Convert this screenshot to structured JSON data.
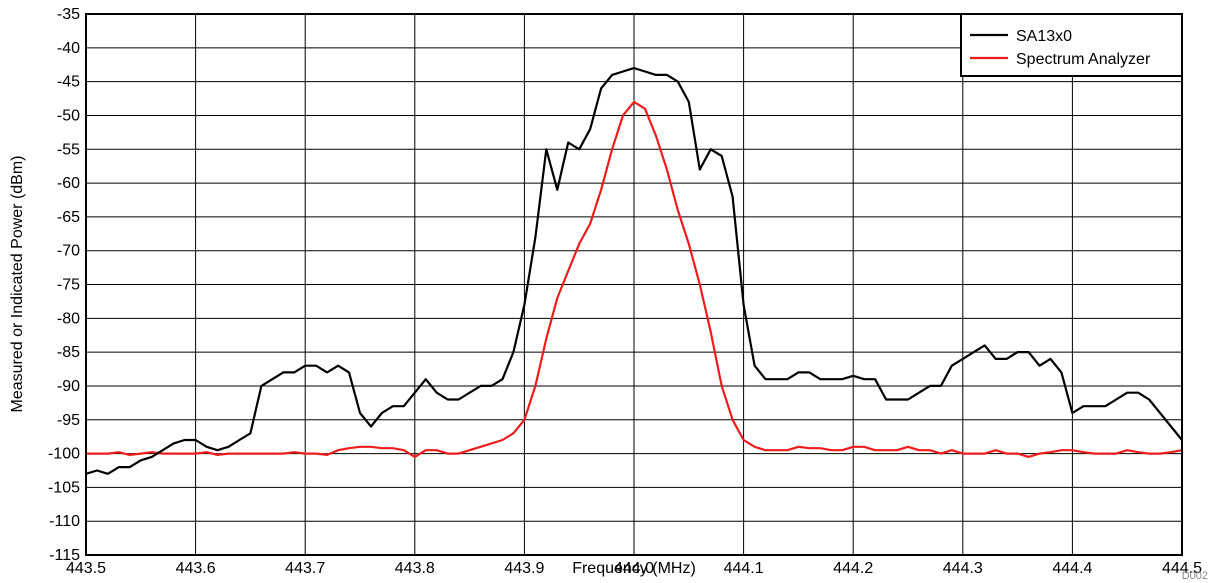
{
  "chart_data": {
    "type": "line",
    "title": "",
    "xlabel": "Frequency (MHz)",
    "ylabel": "Measured or Indicated Power (dBm)",
    "xlim": [
      443.5,
      444.5
    ],
    "ylim": [
      -115,
      -35
    ],
    "x_ticks": [
      "443.5",
      "443.6",
      "443.7",
      "443.8",
      "443.9",
      "444.0",
      "444.1",
      "444.2",
      "444.3",
      "444.4",
      "444.5"
    ],
    "y_ticks": [
      "-35",
      "-40",
      "-45",
      "-50",
      "-55",
      "-60",
      "-65",
      "-70",
      "-75",
      "-80",
      "-85",
      "-90",
      "-95",
      "-100",
      "-105",
      "-110",
      "-115"
    ],
    "grid": true,
    "legend_position": "top-right",
    "series": [
      {
        "name": "SA13x0",
        "color": "#000000",
        "x": [
          443.5,
          443.51,
          443.52,
          443.53,
          443.54,
          443.55,
          443.56,
          443.57,
          443.58,
          443.59,
          443.6,
          443.61,
          443.62,
          443.63,
          443.64,
          443.65,
          443.66,
          443.67,
          443.68,
          443.69,
          443.7,
          443.71,
          443.72,
          443.73,
          443.74,
          443.75,
          443.76,
          443.77,
          443.78,
          443.79,
          443.8,
          443.81,
          443.82,
          443.83,
          443.84,
          443.85,
          443.86,
          443.87,
          443.88,
          443.89,
          443.9,
          443.91,
          443.92,
          443.93,
          443.94,
          443.95,
          443.96,
          443.97,
          443.98,
          443.99,
          444.0,
          444.01,
          444.02,
          444.03,
          444.04,
          444.05,
          444.06,
          444.07,
          444.08,
          444.09,
          444.1,
          444.11,
          444.12,
          444.13,
          444.14,
          444.15,
          444.16,
          444.17,
          444.18,
          444.19,
          444.2,
          444.21,
          444.22,
          444.23,
          444.24,
          444.25,
          444.26,
          444.27,
          444.28,
          444.29,
          444.3,
          444.31,
          444.32,
          444.33,
          444.34,
          444.35,
          444.36,
          444.37,
          444.38,
          444.39,
          444.4,
          444.41,
          444.42,
          444.43,
          444.44,
          444.45,
          444.46,
          444.47,
          444.48,
          444.49,
          444.5
        ],
        "y": [
          -103,
          -102.5,
          -103,
          -102,
          -102,
          -101,
          -100.5,
          -99.5,
          -98.5,
          -98,
          -98,
          -99,
          -99.5,
          -99,
          -98,
          -97,
          -90,
          -89,
          -88,
          -88,
          -87,
          -87,
          -88,
          -87,
          -88,
          -94,
          -96,
          -94,
          -93,
          -93,
          -91,
          -89,
          -91,
          -92,
          -92,
          -91,
          -90,
          -90,
          -89,
          -85,
          -78,
          -68,
          -55,
          -61,
          -54,
          -55,
          -52,
          -46,
          -44,
          -43.5,
          -43,
          -43.5,
          -44,
          -44,
          -45,
          -48,
          -58,
          -55,
          -56,
          -62,
          -78,
          -87,
          -89,
          -89,
          -89,
          -88,
          -88,
          -89,
          -89,
          -89,
          -88.5,
          -89,
          -89,
          -92,
          -92,
          -92,
          -91,
          -90,
          -90,
          -87,
          -86,
          -85,
          -84,
          -86,
          -86,
          -85,
          -85,
          -87,
          -86,
          -88,
          -94,
          -93,
          -93,
          -93,
          -92,
          -91,
          -91,
          -92,
          -94,
          -96,
          -98
        ]
      },
      {
        "name": "Spectrum Analyzer",
        "color": "#ee1c1c",
        "x": [
          443.5,
          443.51,
          443.52,
          443.53,
          443.54,
          443.55,
          443.56,
          443.57,
          443.58,
          443.59,
          443.6,
          443.61,
          443.62,
          443.63,
          443.64,
          443.65,
          443.66,
          443.67,
          443.68,
          443.69,
          443.7,
          443.71,
          443.72,
          443.73,
          443.74,
          443.75,
          443.76,
          443.77,
          443.78,
          443.79,
          443.8,
          443.81,
          443.82,
          443.83,
          443.84,
          443.85,
          443.86,
          443.87,
          443.88,
          443.89,
          443.9,
          443.91,
          443.92,
          443.93,
          443.94,
          443.95,
          443.96,
          443.97,
          443.98,
          443.99,
          444.0,
          444.01,
          444.02,
          444.03,
          444.04,
          444.05,
          444.06,
          444.07,
          444.08,
          444.09,
          444.1,
          444.11,
          444.12,
          444.13,
          444.14,
          444.15,
          444.16,
          444.17,
          444.18,
          444.19,
          444.2,
          444.21,
          444.22,
          444.23,
          444.24,
          444.25,
          444.26,
          444.27,
          444.28,
          444.29,
          444.3,
          444.31,
          444.32,
          444.33,
          444.34,
          444.35,
          444.36,
          444.37,
          444.38,
          444.39,
          444.4,
          444.41,
          444.42,
          444.43,
          444.44,
          444.45,
          444.46,
          444.47,
          444.48,
          444.49,
          444.5
        ],
        "y": [
          -100,
          -100,
          -100,
          -99.8,
          -100.2,
          -100,
          -99.8,
          -100,
          -100,
          -100,
          -100,
          -99.8,
          -100.2,
          -100,
          -100,
          -100,
          -100,
          -100,
          -100,
          -99.8,
          -100,
          -100,
          -100.2,
          -99.5,
          -99.2,
          -99,
          -99,
          -99.2,
          -99.2,
          -99.5,
          -100.5,
          -99.5,
          -99.5,
          -100,
          -100,
          -99.5,
          -99,
          -98.5,
          -98,
          -97,
          -95,
          -90,
          -83,
          -77,
          -73,
          -69,
          -66,
          -61,
          -55,
          -50,
          -48,
          -49,
          -53,
          -58,
          -64,
          -69,
          -75,
          -82,
          -90,
          -95,
          -98,
          -99,
          -99.5,
          -99.5,
          -99.5,
          -99,
          -99.2,
          -99.2,
          -99.5,
          -99.5,
          -99,
          -99,
          -99.5,
          -99.5,
          -99.5,
          -99,
          -99.5,
          -99.5,
          -100,
          -99.5,
          -100,
          -100,
          -100,
          -99.5,
          -100,
          -100,
          -100.5,
          -100,
          -99.8,
          -99.5,
          -99.5,
          -99.8,
          -100,
          -100,
          -100,
          -99.5,
          -99.8,
          -100,
          -100,
          -99.8,
          -99.5
        ]
      }
    ]
  },
  "figure_id": "D002"
}
